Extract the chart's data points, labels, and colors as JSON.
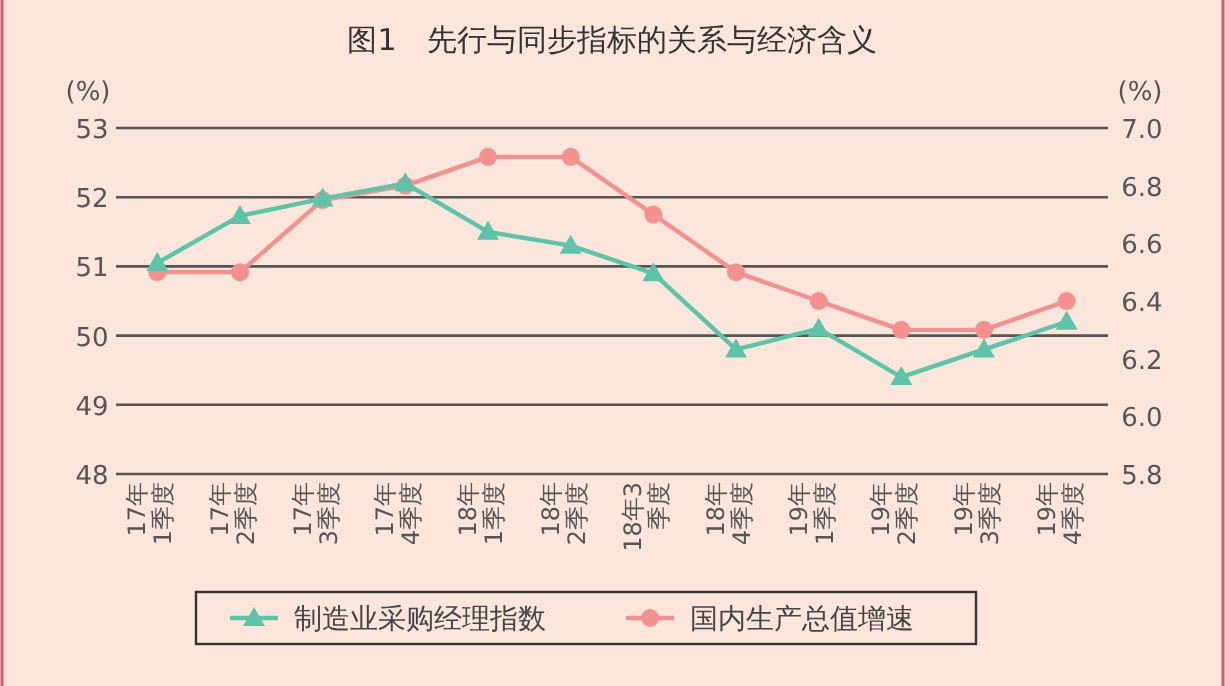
{
  "chart_data": {
    "type": "line",
    "title": "图1　先行与同步指标的关系与经济含义",
    "categories": [
      "17年\n1季度",
      "17年\n2季度",
      "17年\n3季度",
      "17年\n4季度",
      "18年\n1季度",
      "18年\n2季度",
      "18年3\n季度",
      "18年\n4季度",
      "19年\n1季度",
      "19年\n2季度",
      "19年\n3季度",
      "19年\n4季度"
    ],
    "series": [
      {
        "name": "制造业采购经理指数",
        "color": "#5cc4a8",
        "marker": "triangle",
        "values": [
          51.05,
          51.73,
          51.98,
          52.2,
          51.5,
          51.3,
          50.9,
          49.8,
          50.1,
          49.4,
          49.8,
          50.2
        ]
      },
      {
        "name": "国内生产总值增速",
        "color": "#f4908e",
        "marker": "circle",
        "axis": "y2",
        "values": [
          6.5,
          6.5,
          6.75,
          6.8,
          6.9,
          6.9,
          6.7,
          6.5,
          6.4,
          6.3,
          6.3,
          6.4
        ]
      }
    ],
    "ylabel": "(%)",
    "y2label": "(%)",
    "ylim": [
      48,
      53
    ],
    "yticks": [
      48,
      49,
      50,
      51,
      52,
      53
    ],
    "y2lim": [
      5.8,
      7.0
    ],
    "y2ticks": [
      5.8,
      {
        "value": 6,
        "label": "6.0"
      },
      6.2,
      6.4,
      6.6,
      6.8,
      {
        "value": 7,
        "label": "7.0"
      }
    ],
    "grid": "y",
    "legend": "bottom",
    "line_style": "solid"
  }
}
